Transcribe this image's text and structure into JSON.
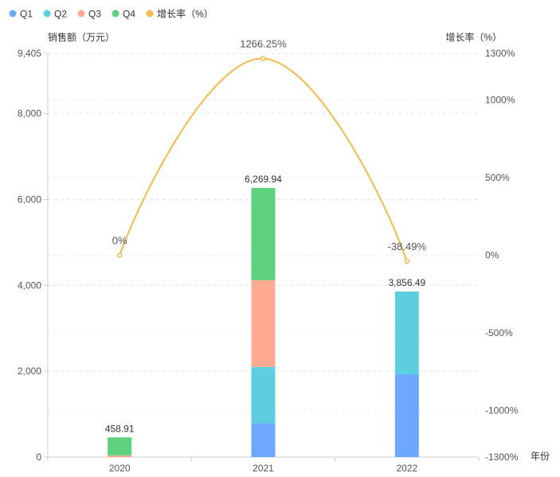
{
  "chart_data": {
    "type": "bar",
    "stacked": true,
    "categories": [
      "2020",
      "2021",
      "2022"
    ],
    "xlabel": "年份",
    "ylabel": "销售额（万元）",
    "ylabel_right": "增长率（%）",
    "ylim": [
      0,
      9405
    ],
    "y_ticks": [
      0,
      2000,
      4000,
      6000,
      8000,
      9405
    ],
    "y_tick_labels": [
      "0",
      "2,000",
      "4,000",
      "6,000",
      "8,000",
      "9,405"
    ],
    "y2lim": [
      -1300,
      1300
    ],
    "y2_ticks": [
      -1300,
      -1000,
      -500,
      0,
      500,
      1000,
      1300
    ],
    "y2_tick_labels": [
      "-1300%",
      "-1000%",
      "-500%",
      "0%",
      "500%",
      "1000%",
      "1300%"
    ],
    "series": [
      {
        "name": "Q1",
        "color": "#6ea8fe",
        "values": [
          0,
          790,
          1930
        ]
      },
      {
        "name": "Q2",
        "color": "#5bcfe0",
        "values": [
          0,
          1310,
          1926.49
        ]
      },
      {
        "name": "Q3",
        "color": "#ffab91",
        "values": [
          40,
          2020,
          0
        ]
      },
      {
        "name": "Q4",
        "color": "#5dd17d",
        "values": [
          418.91,
          2149.94,
          0
        ]
      }
    ],
    "totals": [
      458.91,
      6269.94,
      3856.49
    ],
    "total_labels": [
      "458.91",
      "6,269.94",
      "3,856.49"
    ],
    "line_series": {
      "name": "增长率（%）",
      "color": "#f5b94c",
      "values": [
        0,
        1266.25,
        -38.49
      ],
      "labels": [
        "0%",
        "1266.25%",
        "-38.49%"
      ]
    },
    "grid": true,
    "legend_position": "top-left"
  }
}
